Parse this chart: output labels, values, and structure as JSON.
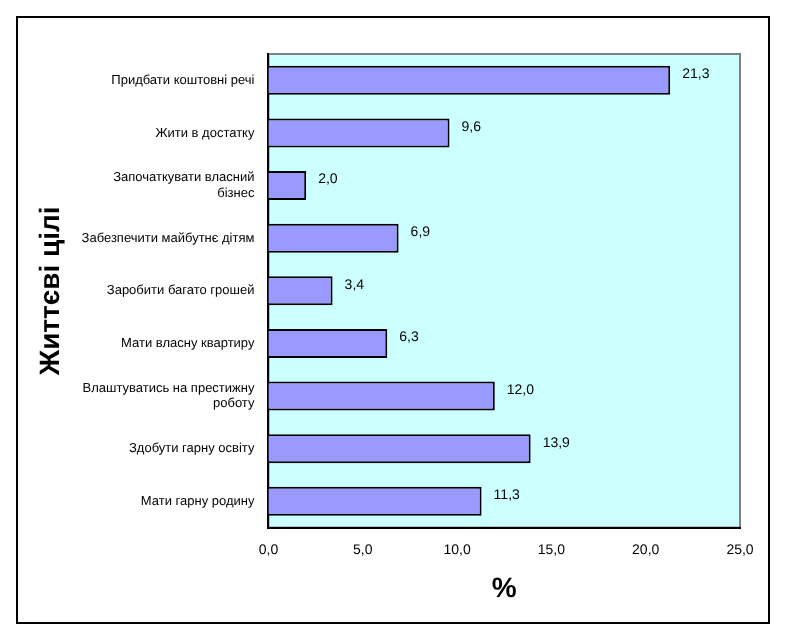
{
  "chart_data": {
    "type": "bar",
    "orientation": "horizontal",
    "ylabel": "Життєві цілі",
    "xlabel": "%",
    "categories": [
      "Придбати коштовні речі",
      "Жити в достатку",
      "Започаткувати власний бізнес",
      "Забезпечити майбутнє дітям",
      "Заробити багато грошей",
      "Мати власну квартиру",
      "Влаштуватись на престижну роботу",
      "Здобути гарну освіту",
      "Мати гарну родину"
    ],
    "values": [
      21.3,
      9.6,
      2.0,
      6.9,
      3.4,
      6.3,
      12.0,
      13.9,
      11.3
    ],
    "value_labels": [
      "21,3",
      "9,6",
      "2,0",
      "6,9",
      "3,4",
      "6,3",
      "12,0",
      "13,9",
      "11,3"
    ],
    "color": "#9999ff",
    "xlim": [
      0,
      25
    ],
    "xticks": [
      {
        "value": 0,
        "label": "0,0"
      },
      {
        "value": 5,
        "label": "5,0"
      },
      {
        "value": 10,
        "label": "10,0"
      },
      {
        "value": 15,
        "label": "15,0"
      },
      {
        "value": 20,
        "label": "20,0"
      },
      {
        "value": 25,
        "label": "25,0"
      }
    ],
    "grid": false,
    "legend": false
  }
}
